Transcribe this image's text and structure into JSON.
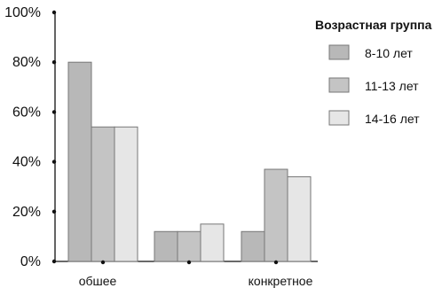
{
  "chart_data": {
    "type": "bar",
    "categories": [
      "обшее",
      "",
      "конкретное"
    ],
    "series": [
      {
        "name": "8-10 лет",
        "values": [
          80,
          12,
          12
        ]
      },
      {
        "name": "11-13 лет",
        "values": [
          54,
          12,
          37
        ]
      },
      {
        "name": "14-16 лет",
        "values": [
          54,
          15,
          34
        ]
      }
    ],
    "ylim": [
      0,
      100
    ],
    "yticks": [
      "0%",
      "20%",
      "40%",
      "60%",
      "80%",
      "100%"
    ],
    "legend": {
      "title": "Возрастная группа",
      "position": "top-right"
    },
    "colors": [
      "#b8b8b8",
      "#c4c4c4",
      "#e6e6e6"
    ],
    "grid": false
  }
}
